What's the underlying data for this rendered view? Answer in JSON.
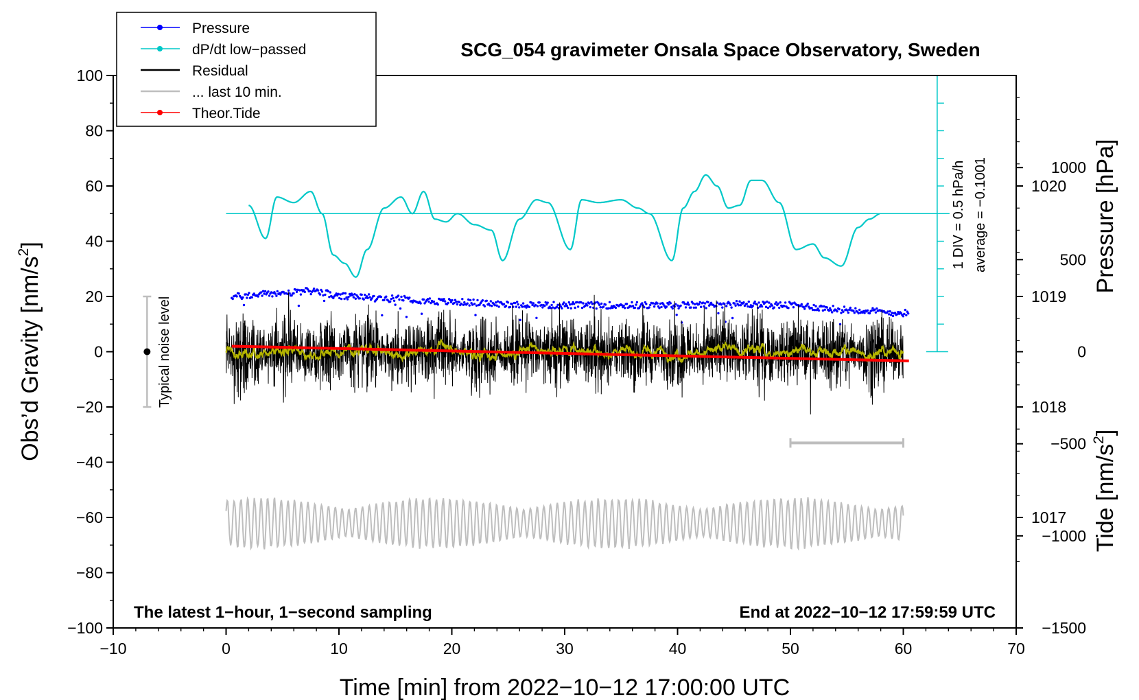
{
  "chart_data": {
    "type": "line",
    "title": "SCG_054 gravimeter Onsala Space Observatory, Sweden",
    "xlabel": "Time [min] from 2022−10−12 17:00:00 UTC",
    "ylabel_left_main": "Obs’d Gravity [nm/s",
    "ylabel_left_sup": "2",
    "ylabel_left_close": "]",
    "ylabel_right_pressure": "Pressure [hPa]",
    "ylabel_right_tide_main": "Tide [nm/s",
    "ylabel_right_tide_sup": "2",
    "ylabel_right_tide_close": "]",
    "xlim": [
      -10,
      70
    ],
    "ylim": [
      -100,
      100
    ],
    "pressure_lim": [
      1016,
      1021
    ],
    "tide_lim": [
      -1500,
      1500
    ],
    "x_ticks": [
      -10,
      0,
      10,
      20,
      30,
      40,
      50,
      60,
      70
    ],
    "x_tick_labels": [
      "−10",
      "0",
      "10",
      "20",
      "30",
      "40",
      "50",
      "60",
      "70"
    ],
    "y_ticks": [
      -100,
      -80,
      -60,
      -40,
      -20,
      0,
      20,
      40,
      60,
      80,
      100
    ],
    "y_tick_labels": [
      "−100",
      "−80",
      "−60",
      "−40",
      "−20",
      "0",
      "20",
      "40",
      "60",
      "80",
      "100"
    ],
    "pressure_ticks": [
      1017,
      1018,
      1019,
      1020
    ],
    "pressure_tick_labels": [
      "1017",
      "1018",
      "1019",
      "1020"
    ],
    "tide_ticks": [
      -1500,
      -1000,
      -500,
      0,
      500,
      1000
    ],
    "tide_tick_labels": [
      "−1500",
      "−1000",
      "−500",
      "0",
      "500",
      "1000"
    ],
    "legend": [
      {
        "label": "Pressure",
        "color": "#0000ff",
        "marker": "dot"
      },
      {
        "label": "dP/dt low−passed",
        "color": "#00c8c8",
        "marker": "dot"
      },
      {
        "label": "Residual",
        "color": "#000000",
        "marker": "line"
      },
      {
        "label": "... last 10 min.",
        "color": "#bebebe",
        "marker": "line"
      },
      {
        "label": "Theor.Tide",
        "color": "#ff0000",
        "marker": "dot"
      }
    ],
    "legend_position": "top-left",
    "annotations": {
      "noise_label": "Typical noise level",
      "noise_range": [
        -20,
        20
      ],
      "noise_x": -7,
      "div_label": "1 DIV = 0.5 hPa/h",
      "avg_label": "average = −0.1001",
      "dpdt_zero_line_y": 50,
      "dpdt_scale_x": 63,
      "dpdt_scale_range": [
        0,
        100
      ],
      "bottom_left": "The latest 1−hour, 1−second sampling",
      "bottom_right": "End at 2022−10−12 17:59:59 UTC",
      "last10_bar_x": [
        50,
        60
      ],
      "last10_bar_y": -33
    },
    "series": [
      {
        "name": "Pressure",
        "axis": "pressure",
        "color": "#0000ff",
        "x": [
          0.5,
          5,
          8,
          10,
          15,
          20,
          25,
          30,
          35,
          40,
          45,
          50,
          55,
          60
        ],
        "values": [
          1019.0,
          1019.03,
          1019.05,
          1019.0,
          1018.98,
          1018.95,
          1018.93,
          1018.92,
          1018.92,
          1018.92,
          1018.93,
          1018.92,
          1018.88,
          1018.85
        ]
      },
      {
        "name": "dP/dt low-passed",
        "axis": "left",
        "color": "#00c8c8",
        "x": [
          2,
          3.5,
          4.5,
          6,
          7.5,
          8.5,
          9.5,
          10.5,
          11.5,
          12.5,
          14,
          15.5,
          16.5,
          17.5,
          18.5,
          19.5,
          20.5,
          22,
          23.5,
          24.5,
          26,
          27.5,
          28.5,
          30.5,
          31.5,
          33,
          35,
          36.5,
          37.5,
          39.5,
          40.5,
          41.5,
          42.5,
          43.5,
          44.5,
          45.5,
          46.5,
          47.5,
          49,
          50.5,
          52,
          53,
          54.5,
          56,
          57,
          58
        ],
        "values": [
          53,
          41,
          56,
          54,
          58,
          50,
          35,
          32,
          27,
          37,
          52,
          56,
          50,
          58,
          48,
          47,
          50,
          46,
          44,
          33,
          48,
          55,
          54,
          37,
          55,
          54,
          55,
          52,
          50,
          33,
          52,
          58,
          64,
          60,
          52,
          53,
          62,
          62,
          54,
          37,
          39,
          34,
          31,
          45,
          48,
          50
        ]
      },
      {
        "name": "Residual",
        "axis": "left",
        "color": "#000000",
        "x": [
          0,
          60
        ],
        "values": [
          0,
          0
        ],
        "amplitude": 14
      },
      {
        "name": "Residual smoothed",
        "axis": "left",
        "color": "#b4b400",
        "x": [
          0,
          60
        ],
        "values": [
          0,
          0
        ]
      },
      {
        "name": "Theor.Tide",
        "axis": "tide",
        "color": "#ff0000",
        "x": [
          0.5,
          60.5
        ],
        "values": [
          30,
          -50
        ]
      },
      {
        "name": "... last 10 min.",
        "axis": "left",
        "color": "#bebebe",
        "x": [
          0,
          60
        ],
        "values": [
          -62,
          -62
        ],
        "amplitude": 8
      }
    ]
  }
}
